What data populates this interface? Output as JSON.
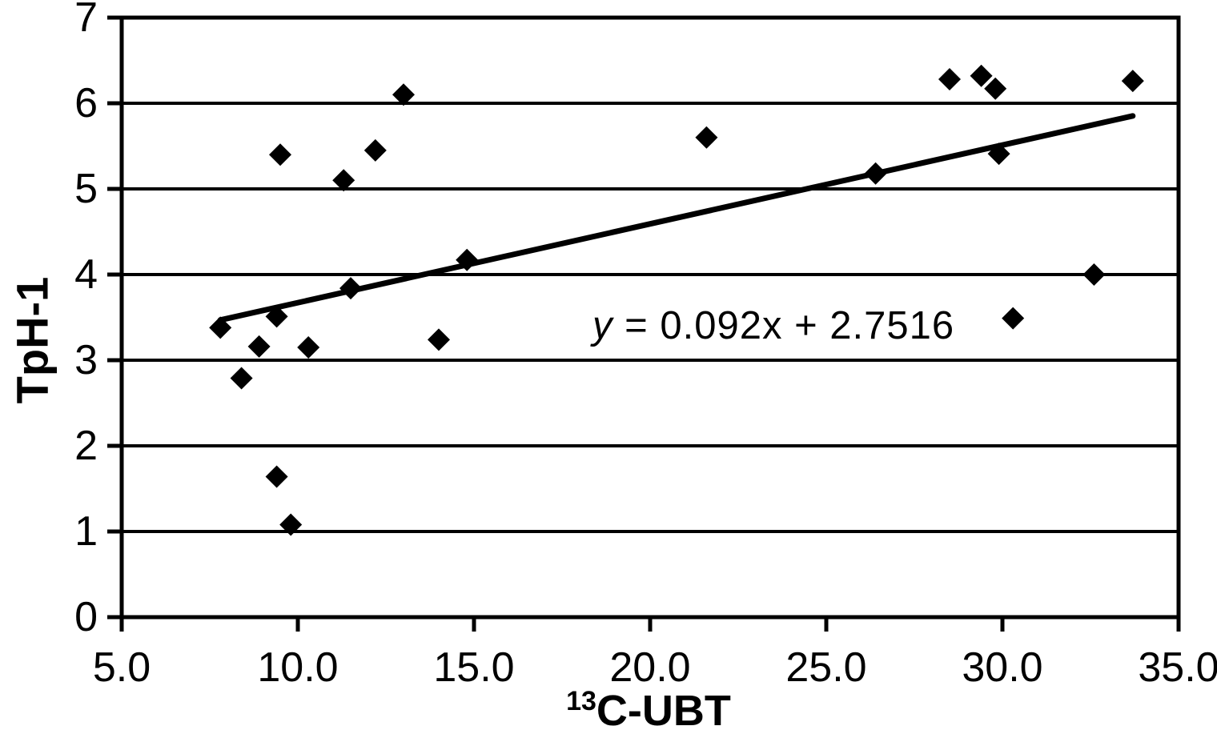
{
  "chart_data": {
    "type": "scatter",
    "title": "",
    "xlabel": {
      "sup": "13",
      "main": "C-UBT"
    },
    "ylabel": "TpH-1",
    "xlim": [
      5,
      35
    ],
    "ylim": [
      0,
      7
    ],
    "x_ticks": [
      "5.0",
      "10.0",
      "15.0",
      "20.0",
      "25.0",
      "30.0",
      "35.0"
    ],
    "y_ticks": [
      "0",
      "1",
      "2",
      "3",
      "4",
      "5",
      "6",
      "7"
    ],
    "grid": "horizontal",
    "legend": "none",
    "marker": "diamond",
    "points": [
      [
        7.8,
        3.38
      ],
      [
        8.4,
        2.79
      ],
      [
        8.9,
        3.16
      ],
      [
        9.4,
        3.51
      ],
      [
        9.4,
        1.64
      ],
      [
        9.5,
        5.4
      ],
      [
        9.8,
        1.08
      ],
      [
        10.3,
        3.15
      ],
      [
        11.3,
        5.1
      ],
      [
        11.5,
        3.84
      ],
      [
        12.2,
        5.45
      ],
      [
        13.0,
        6.1
      ],
      [
        14.0,
        3.24
      ],
      [
        14.8,
        4.17
      ],
      [
        21.6,
        5.6
      ],
      [
        26.4,
        5.18
      ],
      [
        28.5,
        6.28
      ],
      [
        29.4,
        6.32
      ],
      [
        29.8,
        6.17
      ],
      [
        29.9,
        5.41
      ],
      [
        30.3,
        3.49
      ],
      [
        32.6,
        4.0
      ],
      [
        33.7,
        6.26
      ]
    ],
    "trendline": {
      "slope": 0.092,
      "intercept": 2.7516,
      "x_start": 7.8,
      "x_end": 33.7
    },
    "equation": {
      "lhs": "y",
      "rhs": " = 0.092x + 2.7516"
    }
  },
  "colors": {
    "foreground": "#000000",
    "background": "#ffffff"
  }
}
